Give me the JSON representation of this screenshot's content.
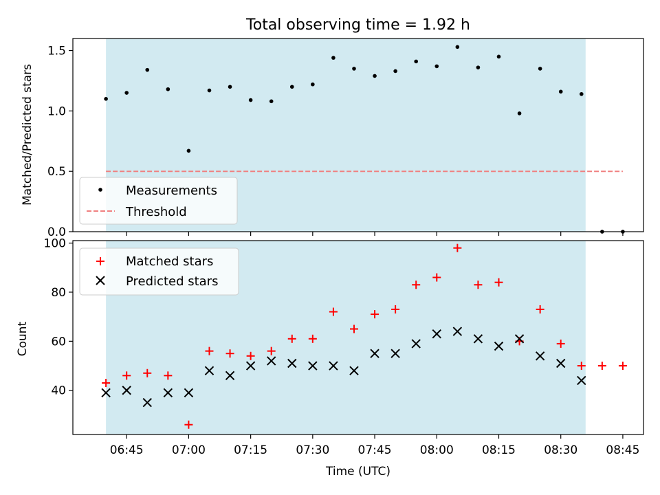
{
  "chart_data": [
    {
      "type": "scatter",
      "title": "Total observing time = 1.92 h",
      "xlabel": "",
      "ylabel": "Matched/Predicted stars",
      "ylim": [
        0,
        1.6
      ],
      "yticks": [
        "0.0",
        "0.5",
        "1.0",
        "1.5"
      ],
      "xlim": [
        "06:32",
        "08:50"
      ],
      "xticks": [
        "06:45",
        "07:00",
        "07:15",
        "07:30",
        "07:45",
        "08:00",
        "08:15",
        "08:30",
        "08:45"
      ],
      "shaded_region": [
        "06:40",
        "08:36"
      ],
      "x": [
        "06:40",
        "06:45",
        "06:50",
        "06:55",
        "07:00",
        "07:05",
        "07:10",
        "07:15",
        "07:20",
        "07:25",
        "07:30",
        "07:35",
        "07:40",
        "07:45",
        "07:50",
        "07:55",
        "08:00",
        "08:05",
        "08:10",
        "08:15",
        "08:20",
        "08:25",
        "08:30",
        "08:35",
        "08:40",
        "08:45"
      ],
      "series": [
        {
          "name": "Measurements",
          "kind": "scatter",
          "color": "#000000",
          "values": [
            1.1,
            1.15,
            1.34,
            1.18,
            0.67,
            1.17,
            1.2,
            1.09,
            1.08,
            1.2,
            1.22,
            1.44,
            1.35,
            1.29,
            1.33,
            1.41,
            1.37,
            1.53,
            1.36,
            1.45,
            0.98,
            1.35,
            1.16,
            1.14,
            0.0,
            0.0
          ]
        },
        {
          "name": "Threshold",
          "kind": "line",
          "color": "#f08080",
          "dashed": true,
          "x": [
            "06:40",
            "08:45"
          ],
          "values": [
            0.5,
            0.5
          ]
        }
      ],
      "legend": "lower-left"
    },
    {
      "type": "scatter",
      "title": "",
      "xlabel": "Time (UTC)",
      "ylabel": "Count",
      "ylim": [
        22,
        101
      ],
      "yticks": [
        "40",
        "60",
        "80",
        "100"
      ],
      "xlim": [
        "06:32",
        "08:50"
      ],
      "xticks": [
        "06:45",
        "07:00",
        "07:15",
        "07:30",
        "07:45",
        "08:00",
        "08:15",
        "08:30",
        "08:45"
      ],
      "shaded_region": [
        "06:40",
        "08:36"
      ],
      "x": [
        "06:40",
        "06:45",
        "06:50",
        "06:55",
        "07:00",
        "07:05",
        "07:10",
        "07:15",
        "07:20",
        "07:25",
        "07:30",
        "07:35",
        "07:40",
        "07:45",
        "07:50",
        "07:55",
        "08:00",
        "08:05",
        "08:10",
        "08:15",
        "08:20",
        "08:25",
        "08:30",
        "08:35",
        "08:40",
        "08:45"
      ],
      "series": [
        {
          "name": "Matched stars",
          "marker": "plus",
          "color": "#ff0000",
          "values": [
            43,
            46,
            47,
            46,
            26,
            56,
            55,
            54,
            56,
            61,
            61,
            72,
            65,
            71,
            73,
            83,
            86,
            98,
            83,
            84,
            60,
            73,
            59,
            50,
            50,
            50
          ]
        },
        {
          "name": "Predicted stars",
          "marker": "x",
          "color": "#000000",
          "values": [
            39,
            40,
            35,
            39,
            39,
            48,
            46,
            50,
            52,
            51,
            50,
            50,
            48,
            55,
            55,
            59,
            63,
            64,
            61,
            58,
            61,
            54,
            51,
            44,
            null,
            null
          ]
        }
      ],
      "legend": "upper-left"
    }
  ],
  "colors": {
    "shade": "#add8e6",
    "legend_frame": "#cccccc"
  }
}
